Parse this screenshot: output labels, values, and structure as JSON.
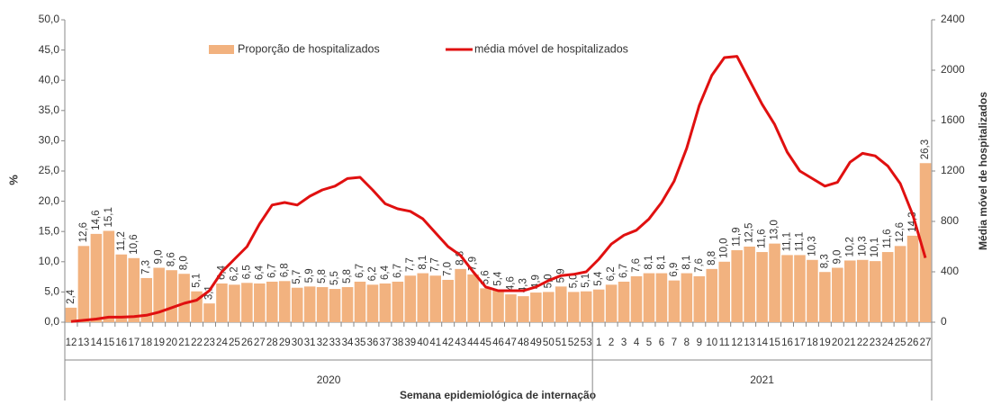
{
  "chart_data": {
    "type": "bar",
    "y_label": "%",
    "y2_label": "Média móvel de hospitalizados",
    "x_label": "Semana epidemiológica de internação",
    "years": [
      "2020",
      "2021"
    ],
    "categories": [
      "12",
      "13",
      "14",
      "15",
      "16",
      "17",
      "18",
      "19",
      "20",
      "21",
      "22",
      "23",
      "24",
      "25",
      "26",
      "27",
      "28",
      "29",
      "30",
      "31",
      "32",
      "33",
      "34",
      "35",
      "36",
      "37",
      "38",
      "39",
      "40",
      "41",
      "42",
      "43",
      "44",
      "45",
      "46",
      "47",
      "48",
      "49",
      "50",
      "51",
      "52",
      "53",
      "1",
      "2",
      "3",
      "4",
      "5",
      "6",
      "7",
      "8",
      "9",
      "10",
      "11",
      "12",
      "13",
      "14",
      "15",
      "16",
      "17",
      "18",
      "19",
      "20",
      "21",
      "22",
      "23",
      "24",
      "25",
      "26",
      "27"
    ],
    "series": [
      {
        "name": "Proporção de hospitalizados",
        "type": "bar",
        "color": "#f2b27f",
        "values": [
          2.4,
          12.6,
          14.6,
          15.1,
          11.2,
          10.6,
          7.3,
          9.0,
          8.6,
          8.0,
          5.1,
          3.1,
          6.4,
          6.2,
          6.5,
          6.4,
          6.7,
          6.8,
          5.7,
          5.9,
          5.8,
          5.5,
          5.8,
          6.7,
          6.2,
          6.4,
          6.7,
          7.7,
          8.1,
          7.7,
          7.0,
          8.8,
          7.9,
          5.6,
          5.4,
          4.6,
          4.3,
          4.9,
          5.0,
          5.9,
          5.0,
          5.1,
          5.4,
          6.2,
          6.7,
          7.6,
          8.1,
          8.1,
          6.9,
          8.1,
          7.6,
          8.8,
          10.0,
          11.9,
          12.5,
          11.6,
          13.0,
          11.1,
          11.1,
          10.3,
          8.3,
          9.0,
          10.2,
          10.3,
          10.1,
          11.6,
          12.6,
          14.3,
          26.3
        ],
        "value_labels": [
          "2,4",
          "12,6",
          "14,6",
          "15,1",
          "11,2",
          "10,6",
          "7,3",
          "9,0",
          "8,6",
          "8,0",
          "5,1",
          "3,1",
          "6,4",
          "6,2",
          "6,5",
          "6,4",
          "6,7",
          "6,8",
          "5,7",
          "5,9",
          "5,8",
          "5,5",
          "5,8",
          "6,7",
          "6,2",
          "6,4",
          "6,7",
          "7,7",
          "8,1",
          "7,7",
          "7,0",
          "8,8",
          "7,9",
          "5,6",
          "5,4",
          "4,6",
          "4,3",
          "4,9",
          "5,0",
          "5,9",
          "5,0",
          "5,1",
          "5,4",
          "6,2",
          "6,7",
          "7,6",
          "8,1",
          "8,1",
          "6,9",
          "8,1",
          "7,6",
          "8,8",
          "10,0",
          "11,9",
          "12,5",
          "11,6",
          "13,0",
          "11,1",
          "11,1",
          "10,3",
          "8,3",
          "9,0",
          "10,2",
          "10,3",
          "10,1",
          "11,6",
          "12,6",
          "14,3",
          "26,3"
        ]
      },
      {
        "name": "média móvel de hospitalizados",
        "type": "line",
        "axis": "y2",
        "color": "#e01010",
        "values": [
          5,
          15,
          25,
          40,
          40,
          45,
          55,
          80,
          115,
          150,
          175,
          250,
          400,
          500,
          600,
          780,
          930,
          950,
          930,
          1000,
          1050,
          1080,
          1140,
          1150,
          1050,
          940,
          900,
          880,
          820,
          710,
          600,
          530,
          400,
          280,
          250,
          250,
          250,
          280,
          330,
          370,
          380,
          400,
          500,
          620,
          690,
          730,
          820,
          950,
          1120,
          1380,
          1720,
          1960,
          2100,
          2110,
          1920,
          1730,
          1570,
          1350,
          1200,
          1140,
          1080,
          1110,
          1270,
          1340,
          1320,
          1240,
          1100,
          850,
          510
        ]
      }
    ],
    "ylim": [
      0,
      50
    ],
    "yticks": [
      {
        "value": 0,
        "label": "0,0"
      },
      {
        "value": 5,
        "label": "5,0"
      },
      {
        "value": 10,
        "label": "10,0"
      },
      {
        "value": 15,
        "label": "15,0"
      },
      {
        "value": 20,
        "label": "20,0"
      },
      {
        "value": 25,
        "label": "25,0"
      },
      {
        "value": 30,
        "label": "30,0"
      },
      {
        "value": 35,
        "label": "35,0"
      },
      {
        "value": 40,
        "label": "40,0"
      },
      {
        "value": 45,
        "label": "45,0"
      },
      {
        "value": 50,
        "label": "50,0"
      }
    ],
    "y2lim": [
      0,
      2400
    ],
    "y2ticks": [
      0,
      400,
      800,
      1200,
      1600,
      2000,
      2400
    ],
    "legend": "top",
    "grid": false
  }
}
